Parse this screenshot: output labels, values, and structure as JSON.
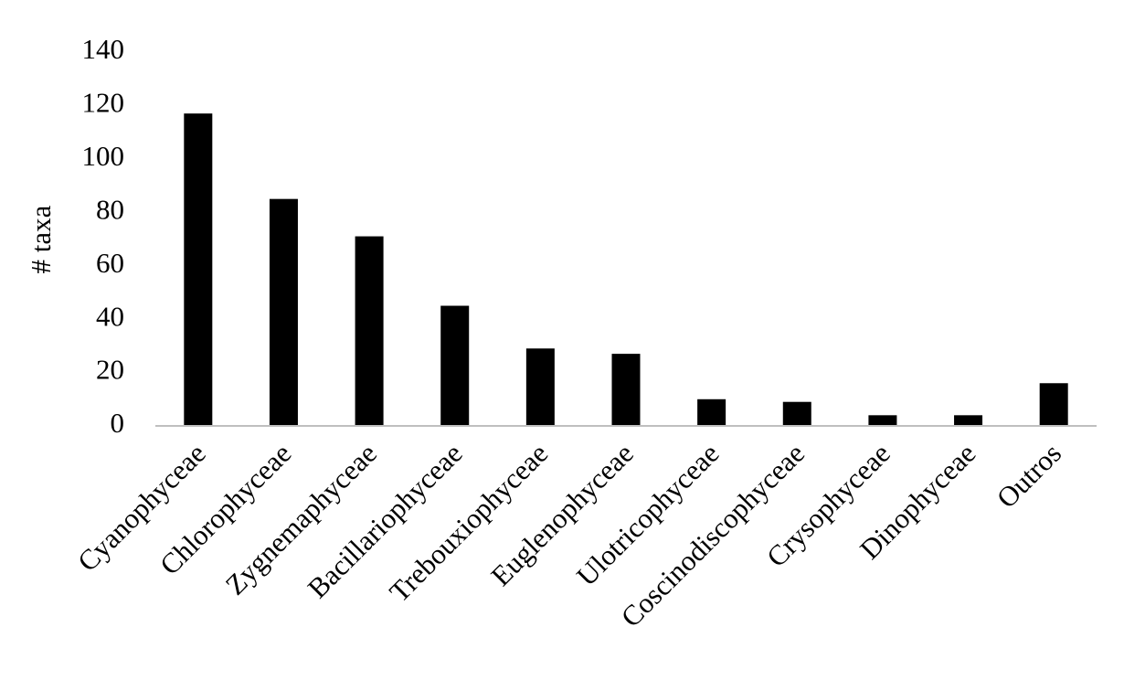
{
  "chart_data": {
    "type": "bar",
    "y_label": "# taxa",
    "categories": [
      "Cyanophyceae",
      "Chlorophyceae",
      "Zygnemaphyceae",
      "Bacillariophyceae",
      "Trebouxiophyceae",
      "Euglenophyceae",
      "Ulotricophyceae",
      "Coscinodiscophyceae",
      "Crysophyceae",
      "Dinophyceae",
      "Outros"
    ],
    "values": [
      117,
      85,
      71,
      45,
      29,
      27,
      10,
      9,
      4,
      4,
      16
    ],
    "color": "#000000",
    "ylim": [
      0,
      140
    ],
    "yticks": [
      0,
      20,
      40,
      60,
      80,
      100,
      120,
      140
    ],
    "grid": false
  }
}
